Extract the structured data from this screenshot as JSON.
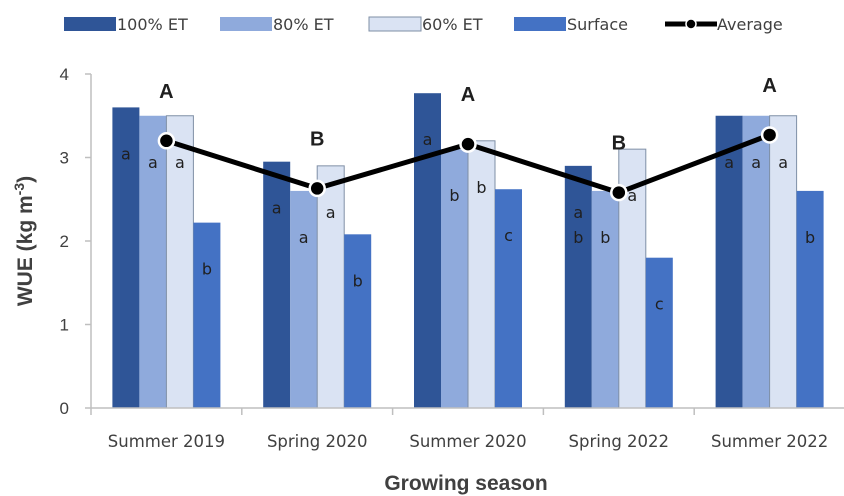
{
  "chart_data": {
    "type": "bar",
    "xlabel": "Growing season",
    "ylabel": "WUE (kg m-3)",
    "ylim": [
      0,
      4
    ],
    "yticks": [
      0,
      1,
      2,
      3,
      4
    ],
    "grid": false,
    "legend_position": "top",
    "categories": [
      "Summer 2019",
      "Spring 2020",
      "Summer 2020",
      "Spring 2022",
      "Summer 2022"
    ],
    "series": [
      {
        "name": "100% ET",
        "color": "#2f5597",
        "values": [
          3.6,
          2.95,
          3.77,
          2.9,
          3.5
        ],
        "letters": [
          "a",
          "a",
          "a",
          "a",
          "a"
        ]
      },
      {
        "name": "80% ET",
        "color": "#8faadc",
        "values": [
          3.5,
          2.6,
          3.1,
          2.6,
          3.5
        ],
        "letters": [
          "a",
          "a",
          "b",
          "b",
          "a"
        ]
      },
      {
        "name": "60% ET",
        "color": "#dae3f3",
        "values": [
          3.5,
          2.9,
          3.2,
          3.1,
          3.5
        ],
        "letters": [
          "a",
          "a",
          "b",
          "a",
          "a"
        ]
      },
      {
        "name": "Surface",
        "color": "#4472c4",
        "values": [
          2.22,
          2.08,
          2.62,
          1.8,
          2.6
        ],
        "letters": [
          "b",
          "b",
          "c",
          "c",
          "b"
        ]
      }
    ],
    "line": {
      "name": "Average",
      "color": "#000000",
      "values": [
        3.2,
        2.63,
        3.16,
        2.58,
        3.27
      ],
      "letters": [
        "A",
        "B",
        "A",
        "B",
        "A"
      ]
    },
    "extra_letters": [
      {
        "category_index": 3,
        "series_index": 0,
        "letter": "b"
      }
    ]
  }
}
